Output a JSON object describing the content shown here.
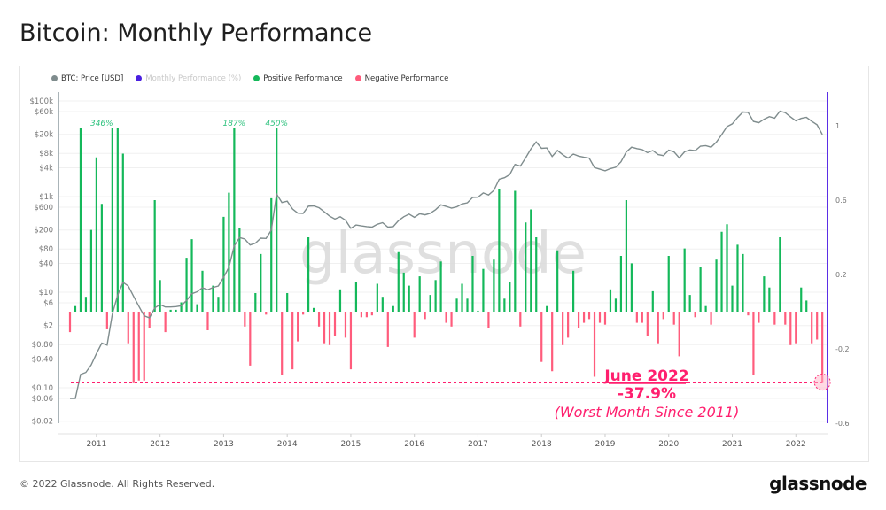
{
  "title": "Bitcoin: Monthly Performance",
  "footer": "© 2022 Glassnode. All Rights Reserved.",
  "logo": "glassnode",
  "watermark": "glassnode",
  "legend": [
    {
      "label": "BTC: Price [USD]",
      "color": "#7f8c8d"
    },
    {
      "label": "Monthly Performance (%)",
      "color": "#4a1fe0",
      "faded": true
    },
    {
      "label": "Positive Performance",
      "color": "#14b85a"
    },
    {
      "label": "Negative Performance",
      "color": "#ff5c7c"
    }
  ],
  "chart_data": {
    "type": "bar",
    "start_month": "2010-08",
    "end_month": "2022-06",
    "x_ticks": [
      "2011",
      "2012",
      "2013",
      "2014",
      "2015",
      "2016",
      "2017",
      "2018",
      "2019",
      "2020",
      "2021",
      "2022"
    ],
    "left_axis": {
      "scale": "log",
      "ticks": [
        "$100k",
        "$60k",
        "$20k",
        "$8k",
        "$4k",
        "$1k",
        "$600",
        "$200",
        "$80",
        "$40",
        "$10",
        "$6",
        "$2",
        "$0.80",
        "$0.40",
        "$0.10",
        "$0.06",
        "$0.02"
      ],
      "range": [
        0.011,
        155000
      ]
    },
    "right_axis": {
      "scale": "linear",
      "ticks": [
        "1",
        "0.6",
        "0.2",
        "-0.2",
        "-0.6"
      ],
      "range": [
        -0.67,
        1.0
      ]
    },
    "grid": true,
    "legend_position": "top-left",
    "colors": {
      "positive": "#14b85a",
      "negative": "#ff5c7c",
      "price": "#7f8c8d",
      "right_axis": "#5b2ee6",
      "annotation": "#ff1f6e"
    },
    "series": [
      {
        "name": "Monthly Performance (%)",
        "values": [
          -0.11,
          0.03,
          1.9,
          0.08,
          0.44,
          0.83,
          0.58,
          -0.095,
          3.46,
          1.5,
          0.85,
          -0.17,
          -0.38,
          -0.37,
          -0.37,
          -0.09,
          0.6,
          0.17,
          -0.11,
          0.01,
          0.01,
          0.05,
          0.29,
          0.39,
          0.04,
          0.22,
          -0.1,
          0.14,
          0.08,
          0.51,
          0.64,
          1.87,
          0.45,
          -0.08,
          -0.29,
          0.1,
          0.31,
          -0.016,
          0.61,
          4.5,
          -0.34,
          0.1,
          -0.31,
          -0.16,
          -0.016,
          0.4,
          0.02,
          -0.08,
          -0.17,
          -0.18,
          -0.13,
          0.12,
          -0.14,
          -0.31,
          0.16,
          -0.03,
          -0.03,
          -0.02,
          0.15,
          0.08,
          -0.19,
          0.03,
          0.32,
          0.21,
          0.14,
          -0.14,
          0.19,
          -0.04,
          0.09,
          0.17,
          0.27,
          -0.06,
          -0.08,
          0.07,
          0.15,
          0.07,
          0.3,
          0.005,
          0.23,
          -0.09,
          0.28,
          0.66,
          0.07,
          0.16,
          0.65,
          -0.08,
          0.48,
          0.55,
          0.4,
          -0.27,
          0.03,
          -0.32,
          0.33,
          -0.18,
          -0.14,
          0.22,
          -0.09,
          -0.06,
          -0.04,
          -0.35,
          -0.06,
          -0.07,
          0.12,
          0.07,
          0.3,
          0.6,
          0.26,
          -0.06,
          -0.06,
          -0.13,
          0.11,
          -0.17,
          -0.04,
          0.3,
          -0.07,
          -0.24,
          0.34,
          0.09,
          -0.03,
          0.24,
          0.03,
          -0.07,
          0.28,
          0.43,
          0.47,
          0.14,
          0.36,
          0.31,
          -0.02,
          -0.34,
          -0.06,
          0.19,
          0.13,
          -0.07,
          0.4,
          -0.07,
          -0.18,
          -0.17,
          0.13,
          0.06,
          -0.17,
          -0.15,
          -0.379
        ]
      },
      {
        "name": "BTC: Price [USD]",
        "values": [
          0.06,
          0.06,
          0.19,
          0.21,
          0.3,
          0.52,
          0.86,
          0.78,
          3.5,
          8.7,
          16.1,
          13.4,
          8.2,
          5.1,
          3.2,
          2.9,
          4.7,
          5.5,
          4.9,
          4.9,
          5.0,
          5.2,
          6.7,
          9.3,
          10.2,
          12.4,
          11.2,
          12.6,
          13.5,
          20.4,
          33.4,
          93,
          139,
          129,
          97,
          106,
          135,
          133,
          198,
          1130,
          750,
          800,
          550,
          450,
          445,
          630,
          640,
          585,
          480,
          390,
          338,
          378,
          320,
          217,
          254,
          244,
          236,
          230,
          263,
          284,
          230,
          236,
          314,
          378,
          430,
          368,
          437,
          416,
          448,
          531,
          673,
          624,
          575,
          609,
          701,
          742,
          963,
          970,
          1190,
          1080,
          1350,
          2300,
          2480,
          2875,
          4700,
          4340,
          6470,
          10000,
          13900,
          10200,
          10400,
          6900,
          9240,
          7500,
          6400,
          7730,
          7030,
          6630,
          6370,
          4040,
          3740,
          3460,
          3850,
          4100,
          5350,
          8570,
          10800,
          10100,
          9630,
          8300,
          9200,
          7560,
          7200,
          9350,
          8600,
          6440,
          8660,
          9450,
          9140,
          11350,
          11650,
          10780,
          13800,
          19700,
          29000,
          33100,
          45200,
          58800,
          57700,
          37300,
          35000,
          41500,
          47100,
          43800,
          61300,
          57000,
          46300,
          38500,
          43200,
          45500,
          37700,
          31800,
          19900
        ]
      }
    ],
    "bar_labels": [
      {
        "index": 8,
        "text": "346%"
      },
      {
        "index": 31,
        "text": "187%"
      },
      {
        "index": 39,
        "text": "450%"
      }
    ],
    "annotation": {
      "title": "June 2022",
      "value": "-37.9%",
      "note": "(Worst Month Since 2011)",
      "index": 142,
      "level": -0.379
    }
  }
}
